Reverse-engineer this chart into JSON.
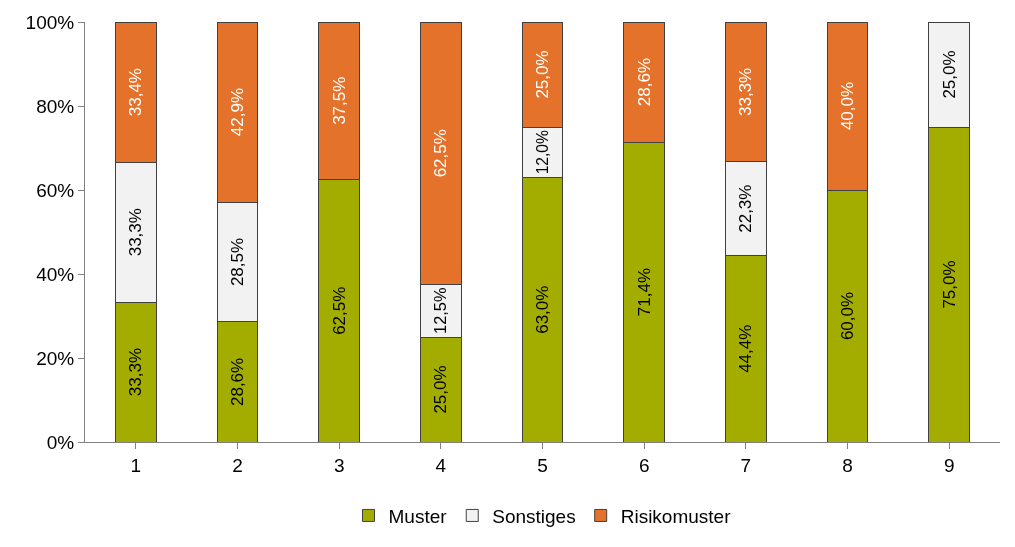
{
  "chart_data": {
    "type": "bar",
    "stacked": true,
    "categories": [
      "1",
      "2",
      "3",
      "4",
      "5",
      "6",
      "7",
      "8",
      "9"
    ],
    "series": [
      {
        "name": "Muster",
        "color": "#a3ad00",
        "values": [
          33.3,
          28.6,
          62.5,
          25.0,
          63.0,
          71.4,
          44.4,
          60.0,
          75.0
        ],
        "value_labels": [
          "33,3%",
          "28,6%",
          "62,5%",
          "25,0%",
          "63,0%",
          "71,4%",
          "44,4%",
          "60,0%",
          "75,0%"
        ]
      },
      {
        "name": "Sonstiges",
        "color": "#f2f2f2",
        "values": [
          33.3,
          28.5,
          null,
          12.5,
          12.0,
          null,
          22.3,
          null,
          25.0
        ],
        "value_labels": [
          "33,3%",
          "28,5%",
          null,
          "12,5%",
          "12,0%",
          null,
          "22,3%",
          null,
          "25,0%"
        ]
      },
      {
        "name": "Risikomuster",
        "color": "#e5722a",
        "values": [
          33.4,
          42.9,
          37.5,
          62.5,
          25.0,
          28.6,
          33.3,
          40.0,
          null
        ],
        "value_labels": [
          "33,4%",
          "42,9%",
          "37,5%",
          "62,5%",
          "25,0%",
          "28,6%",
          "33,3%",
          "40,0%",
          null
        ]
      }
    ],
    "ylim": [
      0,
      100
    ],
    "yticks": [
      {
        "value": 0,
        "label": "0%"
      },
      {
        "value": 20,
        "label": "20%"
      },
      {
        "value": 40,
        "label": "40%"
      },
      {
        "value": 60,
        "label": "60%"
      },
      {
        "value": 80,
        "label": "80%"
      },
      {
        "value": 100,
        "label": "100%"
      }
    ],
    "legend": "bottom"
  }
}
